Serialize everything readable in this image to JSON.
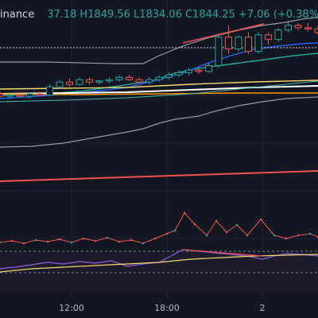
{
  "header": {
    "exchange": "inance",
    "open_partial": "37.18",
    "high": "H1849.56",
    "low": "L1834.06",
    "close": "C1844.25",
    "change": "+7.06 (+0.38%)"
  },
  "time_axis": {
    "labels": [
      "12:00",
      "18:00",
      "2"
    ]
  },
  "colors": {
    "background": "#131722",
    "up": "#26a69a",
    "down": "#ef5350",
    "price_line": "#ef5350",
    "rsi_line": "#7e57c2",
    "rsi_ma": "#f5d76e",
    "vol_line": "#ef5350"
  },
  "chart_data": {
    "type": "candlestick",
    "candles": [
      {
        "o": 1819,
        "h": 1820,
        "l": 1817,
        "c": 1818
      },
      {
        "o": 1818,
        "h": 1819,
        "l": 1817,
        "c": 1818.5
      },
      {
        "o": 1818.5,
        "h": 1820,
        "l": 1817.5,
        "c": 1818
      },
      {
        "o": 1818,
        "h": 1819.5,
        "l": 1817,
        "c": 1819
      },
      {
        "o": 1819,
        "h": 1820,
        "l": 1818,
        "c": 1818.5
      },
      {
        "o": 1818.5,
        "h": 1823,
        "l": 1818,
        "c": 1822
      },
      {
        "o": 1822,
        "h": 1825,
        "l": 1821,
        "c": 1824
      },
      {
        "o": 1824,
        "h": 1825.5,
        "l": 1822,
        "c": 1823
      },
      {
        "o": 1823,
        "h": 1826,
        "l": 1822.5,
        "c": 1825
      },
      {
        "o": 1825,
        "h": 1826,
        "l": 1823,
        "c": 1824
      },
      {
        "o": 1824,
        "h": 1825,
        "l": 1823,
        "c": 1824.5
      },
      {
        "o": 1824.5,
        "h": 1826,
        "l": 1823.5,
        "c": 1825
      },
      {
        "o": 1825,
        "h": 1827,
        "l": 1824,
        "c": 1826
      },
      {
        "o": 1826,
        "h": 1827,
        "l": 1824.5,
        "c": 1825
      },
      {
        "o": 1825,
        "h": 1826,
        "l": 1823.5,
        "c": 1824
      },
      {
        "o": 1824,
        "h": 1826,
        "l": 1823,
        "c": 1825
      },
      {
        "o": 1825,
        "h": 1827,
        "l": 1824,
        "c": 1826
      },
      {
        "o": 1826,
        "h": 1828,
        "l": 1825,
        "c": 1827
      },
      {
        "o": 1827,
        "h": 1829,
        "l": 1826,
        "c": 1828
      },
      {
        "o": 1828,
        "h": 1830,
        "l": 1827,
        "c": 1829
      },
      {
        "o": 1829,
        "h": 1830,
        "l": 1827.5,
        "c": 1828.5
      },
      {
        "o": 1828.5,
        "h": 1832,
        "l": 1828,
        "c": 1831
      },
      {
        "o": 1831,
        "h": 1844,
        "l": 1830,
        "c": 1843
      },
      {
        "o": 1843,
        "h": 1848,
        "l": 1836,
        "c": 1838
      },
      {
        "o": 1838,
        "h": 1844,
        "l": 1837,
        "c": 1843
      },
      {
        "o": 1843,
        "h": 1845,
        "l": 1836,
        "c": 1837
      },
      {
        "o": 1837,
        "h": 1845,
        "l": 1836,
        "c": 1844
      },
      {
        "o": 1844,
        "h": 1845,
        "l": 1840,
        "c": 1842
      },
      {
        "o": 1842,
        "h": 1847,
        "l": 1841,
        "c": 1846
      },
      {
        "o": 1846,
        "h": 1850,
        "l": 1845,
        "c": 1848
      },
      {
        "o": 1848,
        "h": 1849,
        "l": 1846,
        "c": 1847
      },
      {
        "o": 1847,
        "h": 1849,
        "l": 1845.5,
        "c": 1846.5
      },
      {
        "o": 1846.5,
        "h": 1848,
        "l": 1844,
        "c": 1845
      }
    ],
    "current_price": 1844.25
  }
}
